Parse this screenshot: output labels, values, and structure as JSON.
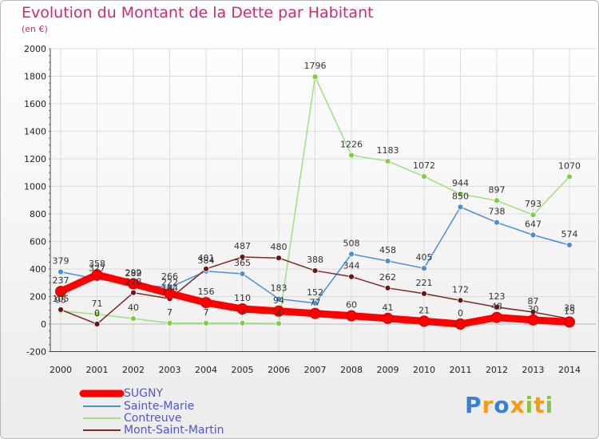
{
  "chart_data": {
    "type": "line",
    "title": "Evolution du Montant de la Dette par Habitant",
    "subtitle": "(en €)",
    "xlabel": "",
    "ylabel": "",
    "ylim": [
      -200,
      2000
    ],
    "y_ticks": [
      "-200",
      "0",
      "200",
      "400",
      "600",
      "800",
      "1000",
      "1200",
      "1400",
      "1600",
      "1800",
      "2000"
    ],
    "categories": [
      "2000",
      "2001",
      "2002",
      "2003",
      "2004",
      "2005",
      "2006",
      "2007",
      "2008",
      "2009",
      "2010",
      "2011",
      "2012",
      "2013",
      "2014"
    ],
    "grid": true,
    "legend_position": "bottom-left",
    "series": [
      {
        "name": "SUGNY",
        "color": "#ff0000",
        "line_color": "#ff0000",
        "values": [
          237,
          358,
          292,
          222,
          156,
          110,
          94,
          77,
          60,
          41,
          21,
          0,
          48,
          30,
          15
        ],
        "labels": [
          "237",
          "358",
          "292",
          "222",
          "156",
          "110",
          "94",
          "77",
          "60",
          "41",
          "21",
          "0",
          "48",
          "30",
          "15"
        ]
      },
      {
        "name": "Sainte-Marie",
        "color": "#4d8fd6",
        "line_color": "#4d8fd6",
        "values": [
          379,
          327,
          289,
          266,
          384,
          365,
          183,
          152,
          508,
          458,
          405,
          850,
          738,
          647,
          574
        ],
        "labels": [
          "379",
          "327",
          "289",
          "266",
          "384",
          "365",
          "183",
          "152",
          "508",
          "458",
          "405",
          "850",
          "738",
          "647",
          "574"
        ]
      },
      {
        "name": "Contreuve",
        "color": "#7fcf3f",
        "line_color": "#9fe07f",
        "values": [
          95,
          71,
          40,
          7,
          7,
          7,
          4,
          1796,
          1226,
          1183,
          1072,
          944,
          897,
          793,
          1070
        ],
        "labels": [
          "95",
          "71",
          "40",
          "7",
          "7",
          "7",
          "4",
          "1796",
          "1226",
          "1183",
          "1072",
          "944",
          "897",
          "793",
          "1070"
        ]
      },
      {
        "name": "Mont-Saint-Martin",
        "color": "#6b1414",
        "line_color": "#7a2a2a",
        "values": [
          105,
          0,
          228,
          184,
          401,
          487,
          480,
          388,
          344,
          262,
          221,
          172,
          123,
          87,
          38
        ],
        "labels": [
          "105",
          "0",
          "228",
          "184",
          "401",
          "487",
          "480",
          "388",
          "344",
          "262",
          "221",
          "172",
          "123",
          "87",
          "38"
        ]
      }
    ]
  },
  "logo": {
    "text": "Proxiti",
    "letters": [
      "P",
      "r",
      "o",
      "x",
      "i",
      "t",
      "i"
    ],
    "colors": [
      "#3a7fd0",
      "#f39c12",
      "#3a7fd0",
      "#f39c12",
      "#8bc34a",
      "#f39c12",
      "#8bc34a"
    ]
  }
}
